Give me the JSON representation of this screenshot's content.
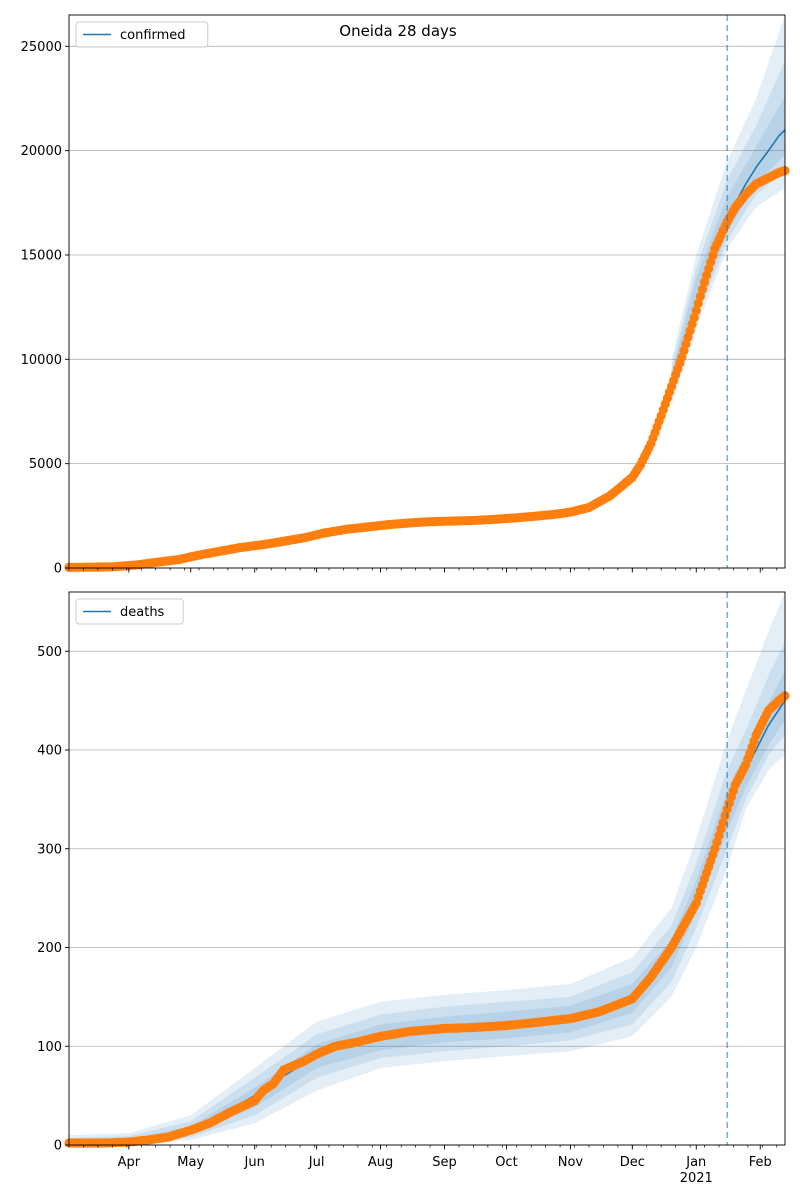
{
  "figure": {
    "title": "Oneida 28 days",
    "colors": {
      "model_line": "#1f77b4",
      "observed": "#ff7f0e",
      "band": "#1f77b4",
      "grid": "#b0b0b0",
      "vline": "#1f77b4"
    }
  },
  "chart_data": [
    {
      "type": "line",
      "panel": "confirmed",
      "title": "Oneida 28 days",
      "xlabel": "",
      "ylabel": "",
      "x_range": [
        "2020-03-03",
        "2021-02-13"
      ],
      "ylim": [
        0,
        26500
      ],
      "yticks": [
        0,
        5000,
        10000,
        15000,
        20000,
        25000
      ],
      "grid": "horizontal",
      "legend": {
        "entries": [
          "confirmed"
        ],
        "placement": "top-left"
      },
      "forecast_start": "2021-01-16",
      "model_median": {
        "x": [
          "2020-03-03",
          "2020-03-15",
          "2020-03-25",
          "2020-04-05",
          "2020-04-15",
          "2020-04-25",
          "2020-05-05",
          "2020-05-15",
          "2020-05-25",
          "2020-06-05",
          "2020-06-15",
          "2020-06-25",
          "2020-07-05",
          "2020-07-15",
          "2020-07-25",
          "2020-08-05",
          "2020-08-15",
          "2020-08-25",
          "2020-09-05",
          "2020-09-15",
          "2020-09-25",
          "2020-10-05",
          "2020-10-15",
          "2020-10-25",
          "2020-11-01",
          "2020-11-10",
          "2020-11-20",
          "2020-11-25",
          "2020-12-01",
          "2020-12-05",
          "2020-12-10",
          "2020-12-15",
          "2020-12-20",
          "2020-12-25",
          "2020-12-31",
          "2021-01-05",
          "2021-01-10",
          "2021-01-16",
          "2021-01-20",
          "2021-01-25",
          "2021-01-30",
          "2021-02-05",
          "2021-02-10",
          "2021-02-13"
        ],
        "y": [
          30,
          40,
          60,
          200,
          300,
          480,
          680,
          850,
          1000,
          1150,
          1300,
          1480,
          1700,
          1880,
          1990,
          2100,
          2180,
          2230,
          2260,
          2300,
          2350,
          2420,
          2500,
          2600,
          2700,
          2950,
          3500,
          3900,
          4400,
          5000,
          6000,
          7300,
          8700,
          10100,
          12000,
          13700,
          15200,
          16600,
          17500,
          18400,
          19200,
          20000,
          20700,
          21000
        ]
      },
      "bands": [
        {
          "name": "",
          "x": [
            "2020-12-20",
            "2021-01-01",
            "2021-01-16",
            "2021-01-30",
            "2021-02-13"
          ],
          "lower": [
            7800,
            11500,
            15300,
            17300,
            18200
          ],
          "upper": [
            10000,
            15000,
            19500,
            22500,
            26500
          ]
        },
        {
          "name": "",
          "x": [
            "2020-12-20",
            "2021-01-01",
            "2021-01-16",
            "2021-01-30",
            "2021-02-13"
          ],
          "lower": [
            8100,
            11900,
            15700,
            17900,
            19000
          ],
          "upper": [
            9600,
            14400,
            18600,
            21200,
            24300
          ]
        },
        {
          "name": "",
          "x": [
            "2020-12-20",
            "2021-01-01",
            "2021-01-16",
            "2021-01-30",
            "2021-02-13"
          ],
          "lower": [
            8400,
            12300,
            16100,
            18400,
            19800
          ],
          "upper": [
            9300,
            13900,
            17800,
            20200,
            22600
          ]
        }
      ],
      "observed": {
        "x": [
          "2020-03-03",
          "2020-03-15",
          "2020-03-25",
          "2020-04-05",
          "2020-04-15",
          "2020-04-25",
          "2020-05-05",
          "2020-05-15",
          "2020-05-25",
          "2020-06-05",
          "2020-06-15",
          "2020-06-25",
          "2020-07-05",
          "2020-07-15",
          "2020-07-25",
          "2020-08-05",
          "2020-08-15",
          "2020-08-25",
          "2020-09-05",
          "2020-09-15",
          "2020-09-25",
          "2020-10-05",
          "2020-10-15",
          "2020-10-25",
          "2020-11-01",
          "2020-11-10",
          "2020-11-20",
          "2020-11-25",
          "2020-12-01",
          "2020-12-05",
          "2020-12-10",
          "2020-12-15",
          "2020-12-20",
          "2020-12-25",
          "2020-12-31",
          "2021-01-05",
          "2021-01-10",
          "2021-01-16",
          "2021-01-20",
          "2021-01-25",
          "2021-01-30",
          "2021-02-05",
          "2021-02-10",
          "2021-02-13"
        ],
        "y": [
          30,
          40,
          60,
          150,
          280,
          400,
          620,
          800,
          980,
          1120,
          1280,
          1450,
          1680,
          1850,
          1960,
          2080,
          2160,
          2220,
          2250,
          2280,
          2330,
          2400,
          2480,
          2580,
          2680,
          2900,
          3450,
          3850,
          4350,
          4950,
          5950,
          7300,
          8700,
          10100,
          12000,
          13700,
          15300,
          16600,
          17300,
          17900,
          18400,
          18700,
          18950,
          19050
        ]
      }
    },
    {
      "type": "line",
      "panel": "deaths",
      "title": "",
      "xlabel": "",
      "ylabel": "",
      "x_range": [
        "2020-03-03",
        "2021-02-13"
      ],
      "ylim": [
        0,
        560
      ],
      "yticks": [
        0,
        100,
        200,
        300,
        400,
        500
      ],
      "xticks": [
        "Apr",
        "May",
        "Jun",
        "Jul",
        "Aug",
        "Sep",
        "Oct",
        "Nov",
        "Dec",
        "Jan",
        "Feb"
      ],
      "xtick_dates": [
        "2020-04-01",
        "2020-05-01",
        "2020-06-01",
        "2020-07-01",
        "2020-08-01",
        "2020-09-01",
        "2020-10-01",
        "2020-11-01",
        "2020-12-01",
        "2021-01-01",
        "2021-02-01"
      ],
      "year_label": "2021",
      "grid": "horizontal",
      "legend": {
        "entries": [
          "deaths"
        ],
        "placement": "top-left"
      },
      "forecast_start": "2021-01-16",
      "model_median": {
        "x": [
          "2020-03-03",
          "2020-03-20",
          "2020-04-01",
          "2020-04-15",
          "2020-05-01",
          "2020-05-15",
          "2020-06-01",
          "2020-06-15",
          "2020-07-01",
          "2020-07-15",
          "2020-08-01",
          "2020-08-15",
          "2020-09-01",
          "2020-09-15",
          "2020-10-01",
          "2020-10-15",
          "2020-11-01",
          "2020-11-15",
          "2020-12-01",
          "2020-12-10",
          "2020-12-20",
          "2021-01-01",
          "2021-01-10",
          "2021-01-16",
          "2021-01-25",
          "2021-02-05",
          "2021-02-13"
        ],
        "y": [
          2,
          2,
          3,
          7,
          15,
          30,
          50,
          70,
          90,
          100,
          108,
          113,
          117,
          119,
          121,
          124,
          128,
          135,
          150,
          168,
          195,
          250,
          305,
          340,
          380,
          425,
          450
        ]
      },
      "bands": [
        {
          "name": "",
          "x": [
            "2020-03-03",
            "2020-04-01",
            "2020-05-01",
            "2020-06-01",
            "2020-07-01",
            "2020-08-01",
            "2020-09-01",
            "2020-10-01",
            "2020-11-01",
            "2020-12-01",
            "2020-12-20",
            "2021-01-01",
            "2021-01-16",
            "2021-01-25",
            "2021-02-05",
            "2021-02-13"
          ],
          "lower": [
            0,
            0,
            5,
            22,
            55,
            78,
            85,
            90,
            95,
            110,
            150,
            200,
            280,
            340,
            380,
            395
          ],
          "upper": [
            10,
            12,
            30,
            78,
            125,
            145,
            152,
            157,
            163,
            190,
            240,
            310,
            410,
            460,
            520,
            560
          ]
        },
        {
          "name": "",
          "x": [
            "2020-03-03",
            "2020-04-01",
            "2020-05-01",
            "2020-06-01",
            "2020-07-01",
            "2020-08-01",
            "2020-09-01",
            "2020-10-01",
            "2020-11-01",
            "2020-12-01",
            "2020-12-20",
            "2021-01-01",
            "2021-01-16",
            "2021-01-25",
            "2021-02-05",
            "2021-02-13"
          ],
          "lower": [
            0,
            1,
            8,
            30,
            68,
            88,
            95,
            100,
            106,
            122,
            165,
            220,
            300,
            350,
            395,
            415
          ],
          "upper": [
            7,
            9,
            24,
            68,
            112,
            132,
            140,
            145,
            150,
            175,
            222,
            285,
            380,
            420,
            475,
            510
          ]
        },
        {
          "name": "",
          "x": [
            "2020-03-03",
            "2020-04-01",
            "2020-05-01",
            "2020-06-01",
            "2020-07-01",
            "2020-08-01",
            "2020-09-01",
            "2020-10-01",
            "2020-11-01",
            "2020-12-01",
            "2020-12-20",
            "2021-01-01",
            "2021-01-16",
            "2021-01-25",
            "2021-02-05",
            "2021-02-13"
          ],
          "lower": [
            1,
            2,
            11,
            38,
            78,
            96,
            104,
            108,
            114,
            134,
            180,
            236,
            318,
            362,
            405,
            430
          ],
          "upper": [
            4,
            6,
            19,
            58,
            102,
            122,
            130,
            135,
            141,
            163,
            208,
            268,
            360,
            398,
            448,
            480
          ]
        }
      ],
      "observed": {
        "x": [
          "2020-03-03",
          "2020-03-20",
          "2020-04-01",
          "2020-04-10",
          "2020-04-20",
          "2020-05-01",
          "2020-05-10",
          "2020-05-20",
          "2020-06-01",
          "2020-06-05",
          "2020-06-10",
          "2020-06-15",
          "2020-06-25",
          "2020-07-01",
          "2020-07-10",
          "2020-07-20",
          "2020-08-01",
          "2020-08-15",
          "2020-09-01",
          "2020-09-15",
          "2020-10-01",
          "2020-10-15",
          "2020-11-01",
          "2020-11-15",
          "2020-12-01",
          "2020-12-10",
          "2020-12-20",
          "2021-01-01",
          "2021-01-10",
          "2021-01-16",
          "2021-01-20",
          "2021-01-25",
          "2021-01-30",
          "2021-02-05",
          "2021-02-10",
          "2021-02-13"
        ],
        "y": [
          2,
          2,
          3,
          5,
          8,
          15,
          22,
          33,
          45,
          55,
          62,
          76,
          85,
          92,
          100,
          104,
          110,
          115,
          118,
          119,
          121,
          124,
          128,
          135,
          148,
          170,
          200,
          245,
          300,
          340,
          365,
          385,
          415,
          440,
          450,
          455
        ]
      }
    }
  ]
}
